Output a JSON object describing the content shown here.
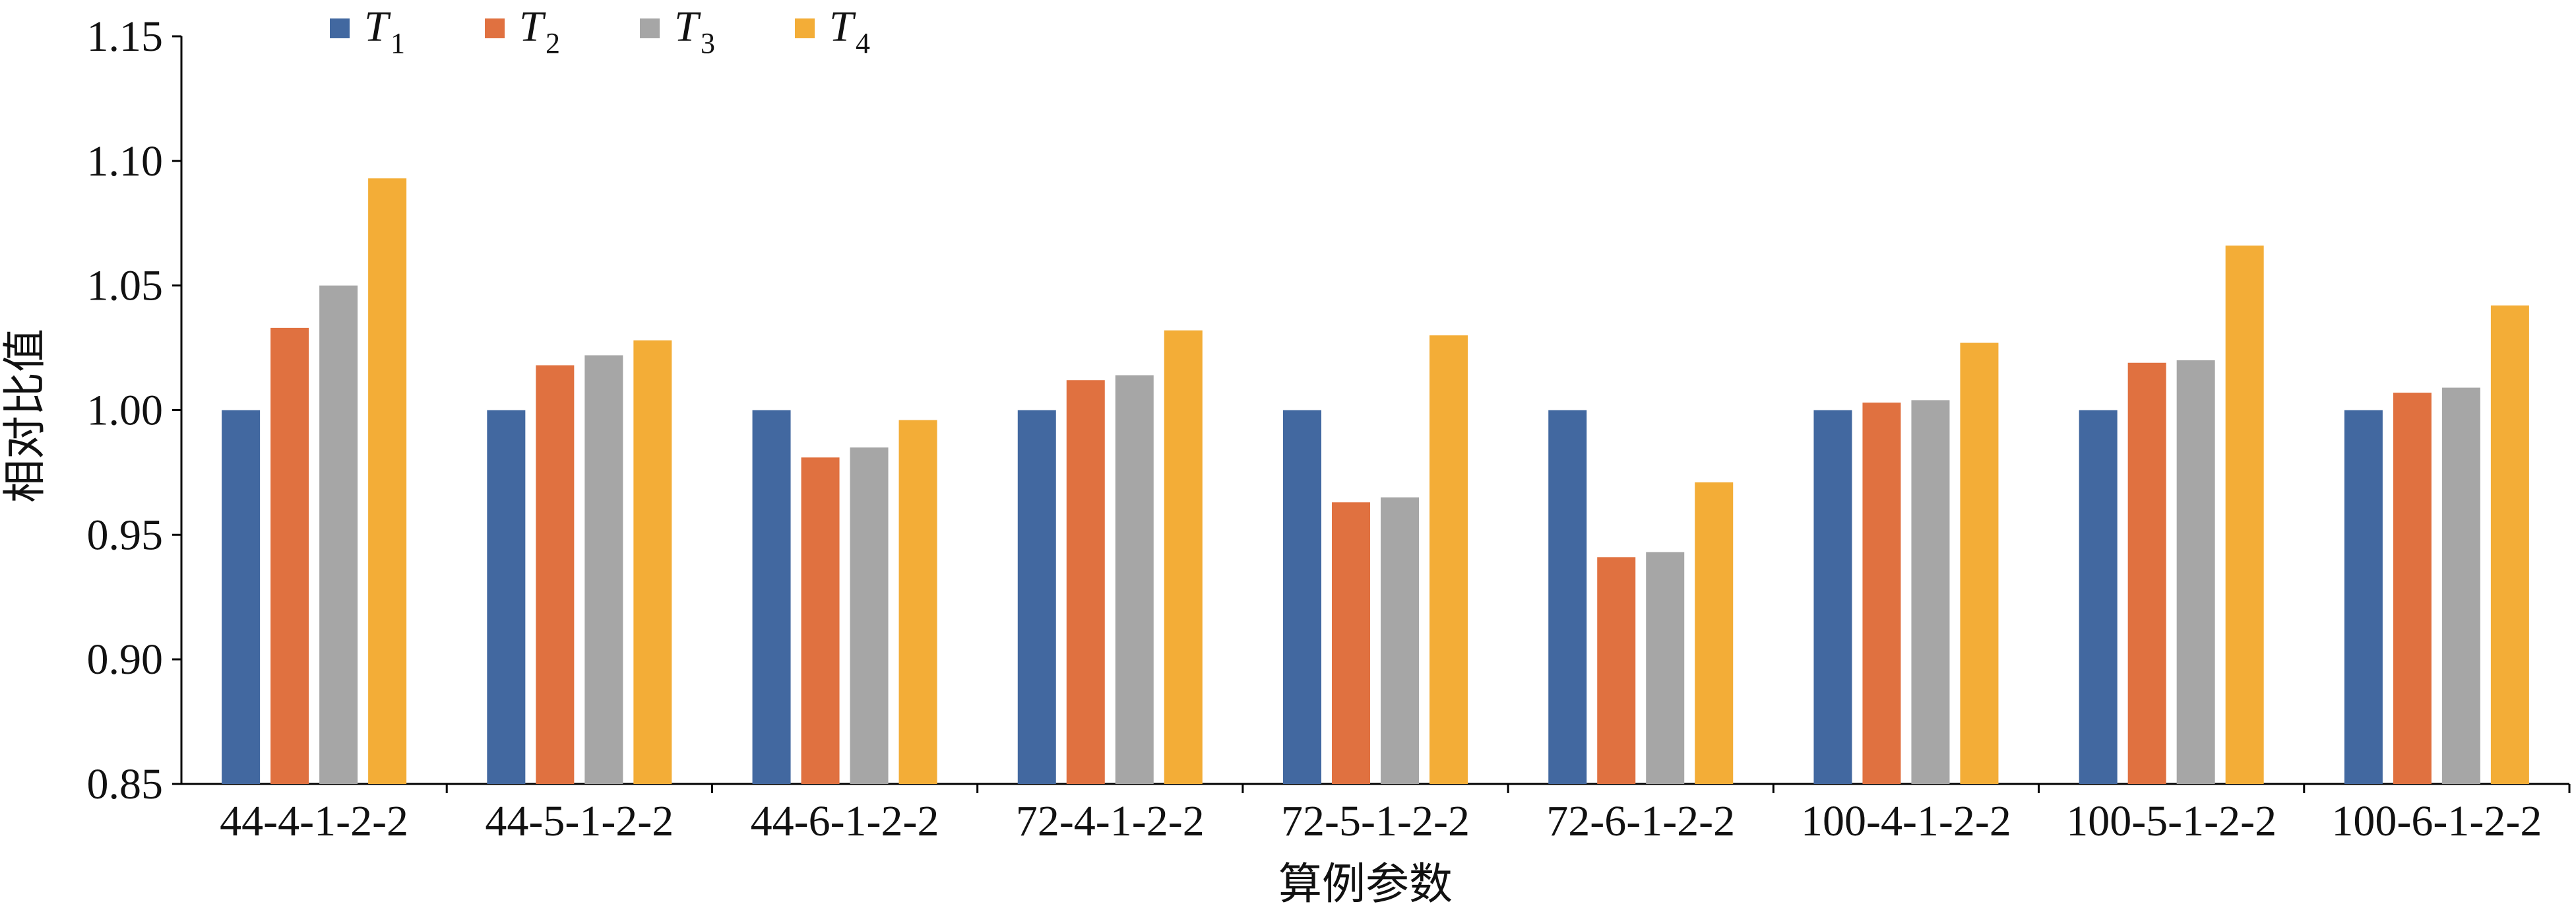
{
  "chart_data": {
    "type": "bar",
    "title": "",
    "xlabel": "算例参数",
    "ylabel": "相对比值",
    "ylim": [
      0.85,
      1.15
    ],
    "yticks": [
      "0.85",
      "0.90",
      "0.95",
      "1.00",
      "1.05",
      "1.10",
      "1.15"
    ],
    "legend_position": "top-left",
    "categories": [
      "44-4-1-2-2",
      "44-5-1-2-2",
      "44-6-1-2-2",
      "72-4-1-2-2",
      "72-5-1-2-2",
      "72-6-1-2-2",
      "100-4-1-2-2",
      "100-5-1-2-2",
      "100-6-1-2-2"
    ],
    "series": [
      {
        "name": "T",
        "sub": "1",
        "color": "#4268A0",
        "values": [
          1.0,
          1.0,
          1.0,
          1.0,
          1.0,
          1.0,
          1.0,
          1.0,
          1.0
        ]
      },
      {
        "name": "T",
        "sub": "2",
        "color": "#E07140",
        "values": [
          1.033,
          1.018,
          0.981,
          1.012,
          0.963,
          0.941,
          1.003,
          1.019,
          1.007
        ]
      },
      {
        "name": "T",
        "sub": "3",
        "color": "#A6A6A6",
        "values": [
          1.05,
          1.022,
          0.985,
          1.014,
          0.965,
          0.943,
          1.004,
          1.02,
          1.009
        ]
      },
      {
        "name": "T",
        "sub": "4",
        "color": "#F3AD37",
        "values": [
          1.093,
          1.028,
          0.996,
          1.032,
          1.03,
          0.971,
          1.027,
          1.066,
          1.042
        ]
      }
    ]
  }
}
